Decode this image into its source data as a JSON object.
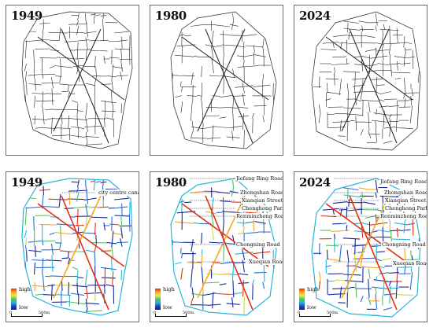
{
  "top_row": {
    "panels": [
      {
        "year": "1949"
      },
      {
        "year": "1980"
      },
      {
        "year": "2024"
      }
    ]
  },
  "bottom_row": {
    "panels": [
      {
        "year": "1949",
        "labels": [
          "city centre canal"
        ]
      },
      {
        "year": "1980",
        "labels": [
          "Jiefang Ring Road",
          "Zhongshan Road",
          "Xianqian Street",
          "Chenghong Park",
          "Renminzhong Road",
          "Chongning Road",
          "Xueqian Road"
        ]
      },
      {
        "year": "2024",
        "labels": [
          "Jiefang Ring Road",
          "Zhongshan Road",
          "Xianqian Street",
          "Chenghong Park",
          "Renminzhong Road",
          "Chongning Road",
          "Xueqian Road"
        ]
      }
    ],
    "legend": {
      "high": "high",
      "low": "low"
    },
    "scale": {
      "start": "0",
      "end": "500m"
    }
  },
  "colors": {
    "top_lines": "#222222",
    "ramp": [
      "#1a2a9c",
      "#2a6fd6",
      "#26b7d8",
      "#52c25f",
      "#c9d84a",
      "#f5a623",
      "#e53012"
    ]
  }
}
